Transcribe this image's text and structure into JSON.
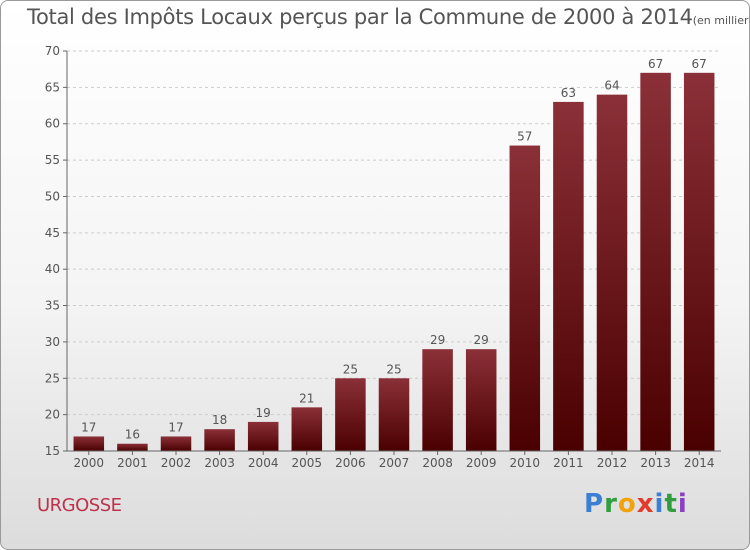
{
  "chart_data": {
    "type": "bar",
    "title": "Total des Impôts Locaux perçus par la Commune de 2000 à 2014",
    "unit_note": "(en milliers d'€)",
    "categories": [
      "2000",
      "2001",
      "2002",
      "2003",
      "2004",
      "2005",
      "2006",
      "2007",
      "2008",
      "2009",
      "2010",
      "2011",
      "2012",
      "2013",
      "2014"
    ],
    "values": [
      17,
      16,
      17,
      18,
      19,
      21,
      25,
      25,
      29,
      29,
      57,
      63,
      64,
      67,
      67
    ],
    "data_labels": [
      "17",
      "16",
      "17",
      "18",
      "19",
      "21",
      "25",
      "25",
      "29",
      "29",
      "57",
      "63",
      "64",
      "67",
      "67"
    ],
    "xlabel": "",
    "ylabel": "",
    "ylim": [
      15,
      70
    ],
    "yticks": [
      15,
      20,
      25,
      30,
      35,
      40,
      45,
      50,
      55,
      60,
      65,
      70
    ],
    "ytick_labels": [
      "15",
      "20",
      "25",
      "30",
      "35",
      "40",
      "45",
      "50",
      "55",
      "60",
      "65",
      "70"
    ],
    "grid": true,
    "legend": "none",
    "colors": {
      "bar_top": "#8b3038",
      "bar_bottom": "#4a0000",
      "grid": "#cccccc",
      "text": "#555555"
    }
  },
  "commune": "URGOSSE",
  "logo": {
    "letters": [
      "P",
      "r",
      "o",
      "x",
      "i",
      "t",
      "i"
    ],
    "colors": [
      "#3b7fd4",
      "#2f9e3e",
      "#f2a20c",
      "#e33a2c",
      "#3b7fd4",
      "#2f9e3e",
      "#8a3fc4"
    ]
  }
}
